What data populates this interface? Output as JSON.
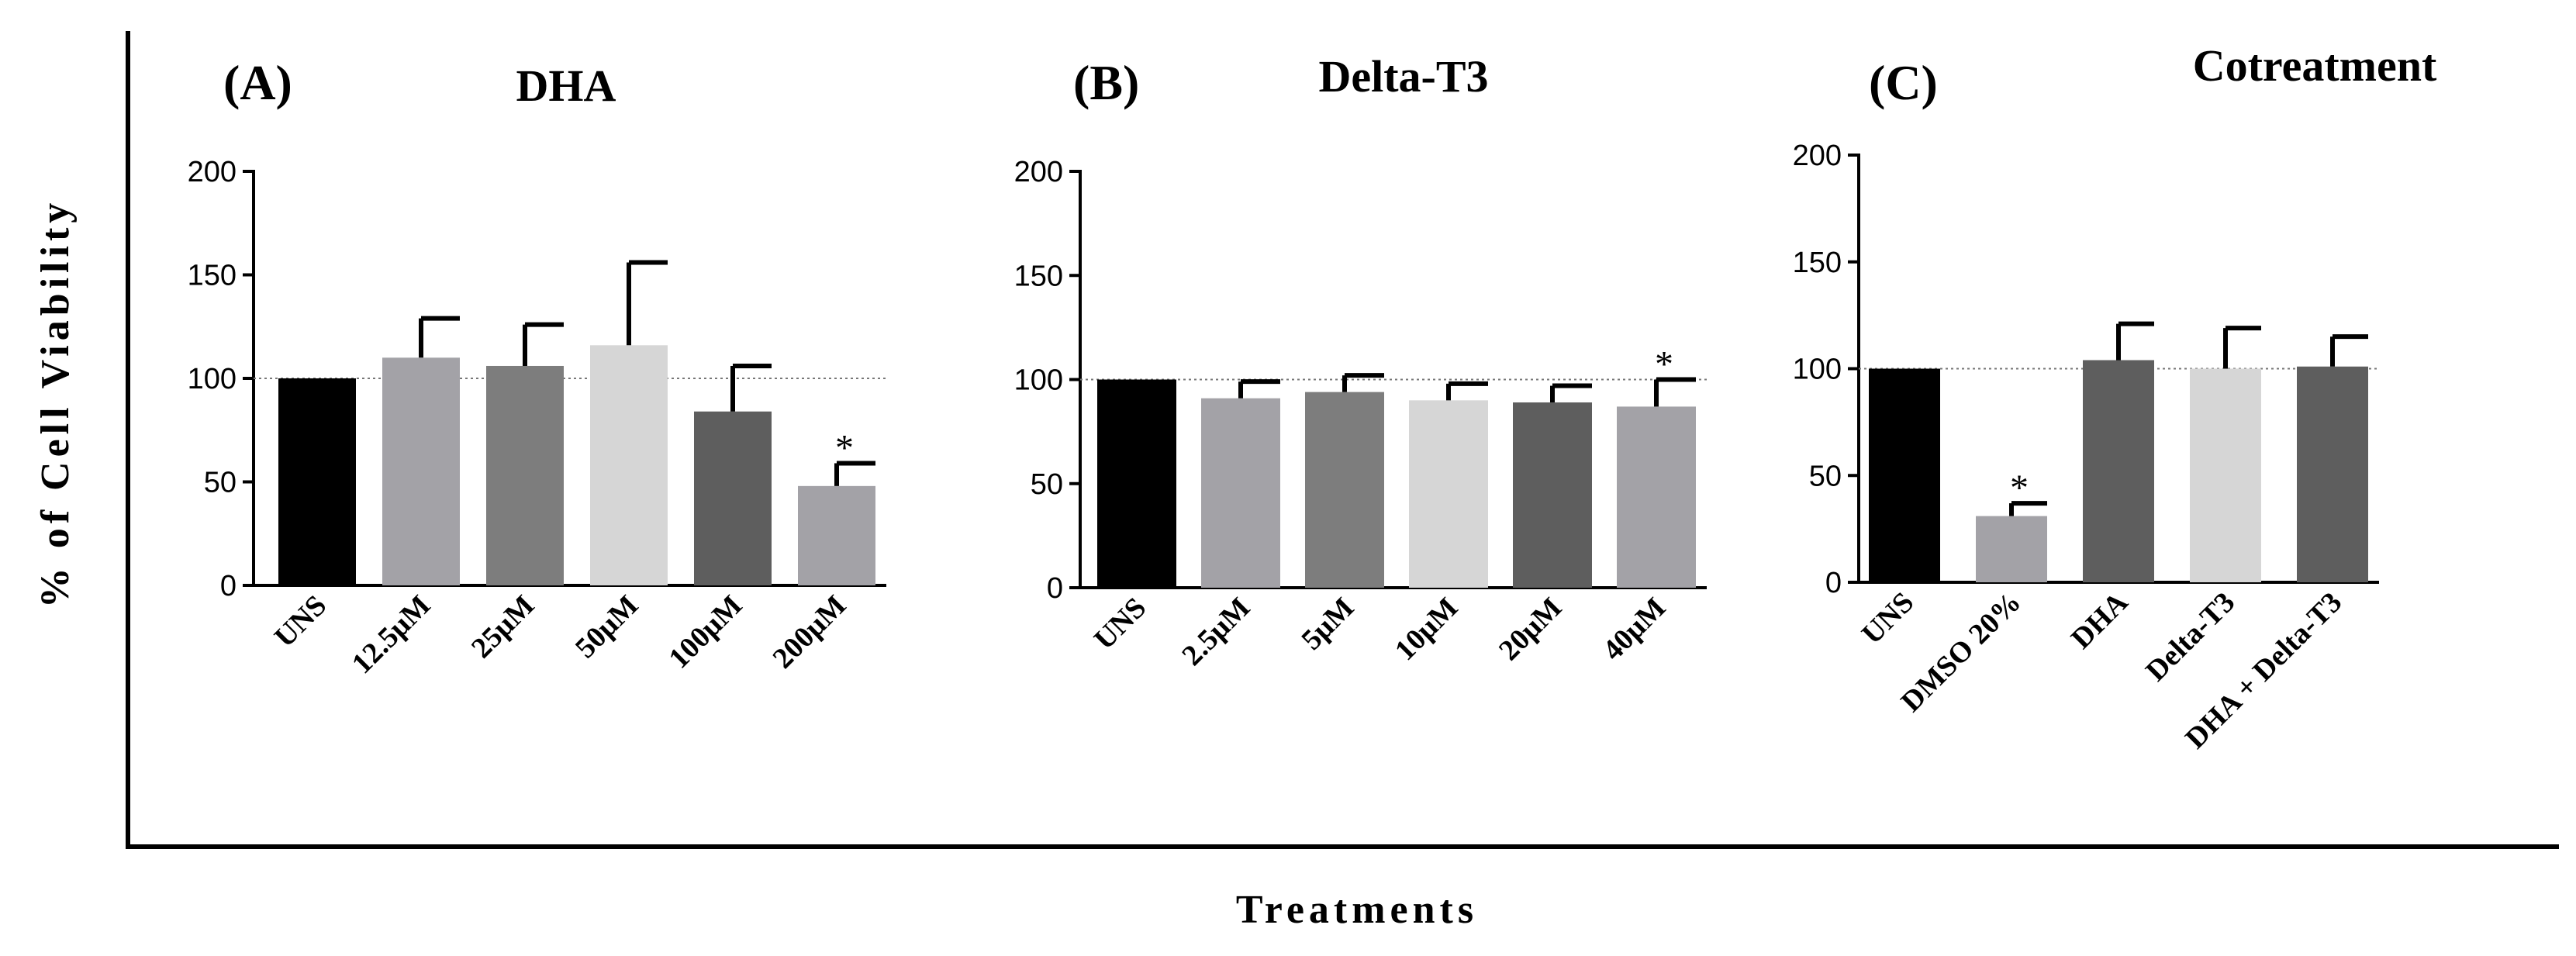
{
  "figure": {
    "y_axis_title": "% of Cell Viability",
    "x_axis_title": "Treatments",
    "reference_value": 100
  },
  "chart_data": [
    {
      "type": "bar",
      "panel": "(A)",
      "title": "DHA",
      "ylim": [
        0,
        200
      ],
      "yticks": [
        0,
        50,
        100,
        150,
        200
      ],
      "categories": [
        "UNS",
        "12.5µM",
        "25µM",
        "50µM",
        "100µM",
        "200µM"
      ],
      "values": [
        100,
        110,
        106,
        116,
        84,
        48
      ],
      "errors": [
        0,
        19,
        20,
        40,
        22,
        11
      ],
      "significant": [
        false,
        false,
        false,
        false,
        false,
        true
      ],
      "colors": [
        "#000000",
        "#a3a2a7",
        "#7d7d7d",
        "#d6d6d6",
        "#5e5e5e",
        "#a3a2a7"
      ]
    },
    {
      "type": "bar",
      "panel": "(B)",
      "title": "Delta-T3",
      "ylim": [
        0,
        200
      ],
      "yticks": [
        0,
        50,
        100,
        150,
        200
      ],
      "categories": [
        "UNS",
        "2.5µM",
        "5µM",
        "10µM",
        "20µM",
        "40µM"
      ],
      "values": [
        100,
        91,
        94,
        90,
        89,
        87
      ],
      "errors": [
        0,
        8,
        8,
        8,
        8,
        13
      ],
      "significant": [
        false,
        false,
        false,
        false,
        false,
        true
      ],
      "colors": [
        "#000000",
        "#a3a2a7",
        "#7d7d7d",
        "#d6d6d6",
        "#5e5e5e",
        "#a3a2a7"
      ]
    },
    {
      "type": "bar",
      "panel": "(C)",
      "title": "Cotreatment",
      "ylim": [
        0,
        200
      ],
      "yticks": [
        0,
        50,
        100,
        150,
        200
      ],
      "categories": [
        "UNS",
        "DMSO 20%",
        "DHA",
        "Delta-T3",
        "DHA + Delta-T3"
      ],
      "values": [
        100,
        31,
        104,
        100,
        101
      ],
      "errors": [
        0,
        6,
        17,
        19,
        14
      ],
      "significant": [
        false,
        true,
        false,
        false,
        false
      ],
      "colors": [
        "#000000",
        "#a3a2a7",
        "#5e5e5e",
        "#d6d6d6",
        "#5e5e5e"
      ]
    }
  ]
}
